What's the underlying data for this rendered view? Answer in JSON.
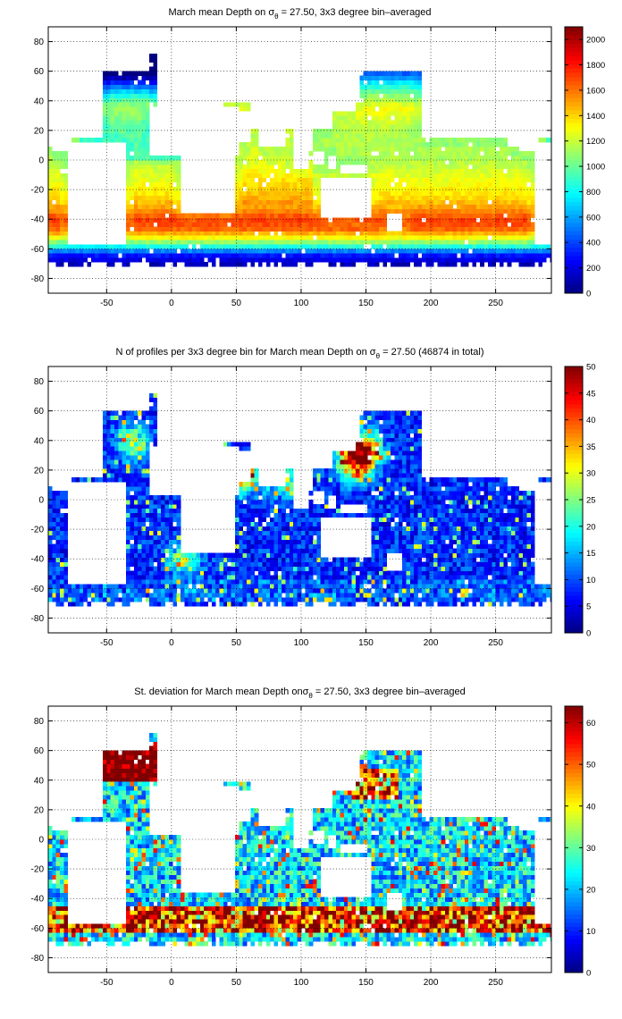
{
  "chart_data": [
    {
      "type": "heatmap",
      "title": {
        "pre": "March mean Depth on ",
        "sigma": "σ",
        "sub": "θ",
        "post": " = 27.50, 3x3 degree bin–averaged"
      },
      "xlim": [
        -95,
        293
      ],
      "ylim": [
        -90,
        90
      ],
      "xticks": [
        -50,
        0,
        50,
        100,
        150,
        200,
        250
      ],
      "yticks": [
        -80,
        -60,
        -40,
        -20,
        0,
        20,
        40,
        60,
        80
      ],
      "grid": true,
      "colorbar": {
        "range": [
          0,
          2100
        ],
        "ticks": [
          0,
          200,
          400,
          600,
          800,
          1000,
          1200,
          1400,
          1600,
          1800,
          2000
        ]
      },
      "bin_size_deg": 3,
      "field": "mean_depth",
      "zonal_profile": [
        {
          "lat": -78,
          "value": 60
        },
        {
          "lat": -70,
          "value": 180
        },
        {
          "lat": -64,
          "value": 380
        },
        {
          "lat": -58,
          "value": 900
        },
        {
          "lat": -52,
          "value": 1350
        },
        {
          "lat": -46,
          "value": 1650
        },
        {
          "lat": -40,
          "value": 1720
        },
        {
          "lat": -34,
          "value": 1550
        },
        {
          "lat": -25,
          "value": 1380
        },
        {
          "lat": -10,
          "value": 1250
        },
        {
          "lat": 0,
          "value": 1150
        },
        {
          "lat": 20,
          "value": 1150
        },
        {
          "lat": 35,
          "value": 1300
        },
        {
          "lat": 45,
          "value": 1050
        },
        {
          "lat": 55,
          "value": 650
        },
        {
          "lat": 65,
          "value": 250
        }
      ]
    },
    {
      "type": "heatmap",
      "title": {
        "pre": "N of profiles per 3x3 degree bin for March mean Depth on ",
        "sigma": "σ",
        "sub": "θ",
        "post": " = 27.50 (46874 in total)"
      },
      "total_profiles": 46874,
      "xlim": [
        -95,
        293
      ],
      "ylim": [
        -90,
        90
      ],
      "xticks": [
        -50,
        0,
        50,
        100,
        150,
        200,
        250
      ],
      "yticks": [
        -80,
        -60,
        -40,
        -20,
        0,
        20,
        40,
        60,
        80
      ],
      "grid": true,
      "colorbar": {
        "range": [
          0,
          50
        ],
        "ticks": [
          0,
          5,
          10,
          15,
          20,
          25,
          30,
          35,
          40,
          45,
          50
        ]
      },
      "bin_size_deg": 3,
      "field": "profile_count",
      "typical_value": 8,
      "hotspots": [
        {
          "lon": 150,
          "lat": 33,
          "value": 48
        },
        {
          "lon": 140,
          "lat": 25,
          "value": 40
        },
        {
          "lon": -30,
          "lat": 40,
          "value": 30
        },
        {
          "lon": 55,
          "lat": 15,
          "value": 35
        },
        {
          "lon": 85,
          "lat": 15,
          "value": 30
        },
        {
          "lon": 10,
          "lat": -40,
          "value": 28
        }
      ]
    },
    {
      "type": "heatmap",
      "title": {
        "pre": "St. deviation for March mean Depth on",
        "sigma": "σ",
        "sub": "θ",
        "post": " = 27.50, 3x3 degree bin–averaged"
      },
      "xlim": [
        -95,
        293
      ],
      "ylim": [
        -90,
        90
      ],
      "xticks": [
        -50,
        0,
        50,
        100,
        150,
        200,
        250
      ],
      "yticks": [
        -80,
        -60,
        -40,
        -20,
        0,
        20,
        40,
        60,
        80
      ],
      "grid": true,
      "colorbar": {
        "range": [
          0,
          64
        ],
        "ticks": [
          0,
          10,
          20,
          30,
          40,
          50,
          60
        ]
      },
      "bin_size_deg": 3,
      "field": "std_depth",
      "typical_value": 22,
      "high_regions": [
        {
          "name": "North Atlantic subpolar",
          "value": 64
        },
        {
          "name": "Southern Ocean band -45 to -60",
          "value": 64
        },
        {
          "name": "Kuroshio extension",
          "value": 64
        }
      ]
    }
  ],
  "colors": {
    "frame": "#000000",
    "land": "#ffffff",
    "grid": "#000000",
    "colormap": "jet"
  }
}
